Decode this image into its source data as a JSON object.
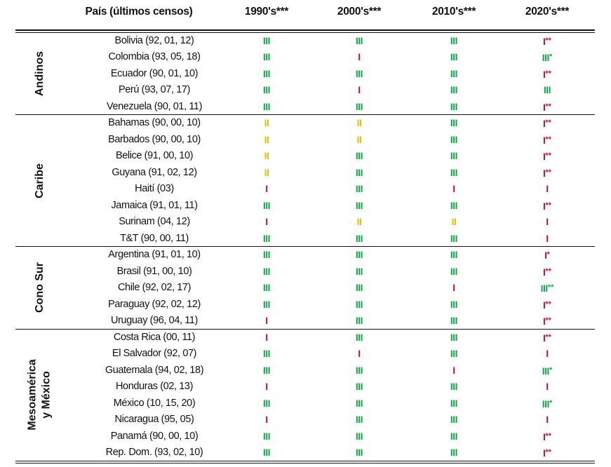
{
  "header": {
    "country": "País (últimos censos)",
    "decades": [
      "1990's***",
      "2000's***",
      "2010's***",
      "2020's***"
    ]
  },
  "colors": {
    "III": "#12a84a",
    "II": "#f5b800",
    "I": "#c8102e"
  },
  "groups": [
    {
      "name": "Andinos",
      "rows": [
        {
          "country": "Bolivia (92, 01, 12)",
          "marks": [
            [
              "III",
              ""
            ],
            [
              "III",
              ""
            ],
            [
              "III",
              ""
            ],
            [
              "I",
              "**"
            ]
          ]
        },
        {
          "country": "Colombia (93, 05, 18)",
          "marks": [
            [
              "III",
              ""
            ],
            [
              "I",
              ""
            ],
            [
              "III",
              ""
            ],
            [
              "III",
              "*"
            ]
          ]
        },
        {
          "country": "Ecuador (90, 01, 10)",
          "marks": [
            [
              "III",
              ""
            ],
            [
              "III",
              ""
            ],
            [
              "III",
              ""
            ],
            [
              "I",
              "**"
            ]
          ]
        },
        {
          "country": "Perú (93, 07, 17)",
          "marks": [
            [
              "III",
              ""
            ],
            [
              "I",
              ""
            ],
            [
              "III",
              ""
            ],
            [
              "III",
              ""
            ]
          ]
        },
        {
          "country": "Venezuela (90, 01, 11)",
          "marks": [
            [
              "III",
              ""
            ],
            [
              "III",
              ""
            ],
            [
              "III",
              ""
            ],
            [
              "I",
              "**"
            ]
          ]
        }
      ]
    },
    {
      "name": "Caribe",
      "rows": [
        {
          "country": "Bahamas (90, 00, 10)",
          "marks": [
            [
              "II",
              ""
            ],
            [
              "II",
              ""
            ],
            [
              "III",
              ""
            ],
            [
              "I",
              "**"
            ]
          ]
        },
        {
          "country": "Barbados (90, 00, 10)",
          "marks": [
            [
              "II",
              ""
            ],
            [
              "II",
              ""
            ],
            [
              "III",
              ""
            ],
            [
              "I",
              "**"
            ]
          ]
        },
        {
          "country": "Belice (91, 00, 10)",
          "marks": [
            [
              "II",
              ""
            ],
            [
              "III",
              ""
            ],
            [
              "III",
              ""
            ],
            [
              "I",
              "**"
            ]
          ]
        },
        {
          "country": "Guyana (91, 02, 12)",
          "marks": [
            [
              "II",
              ""
            ],
            [
              "III",
              ""
            ],
            [
              "III",
              ""
            ],
            [
              "I",
              "**"
            ]
          ]
        },
        {
          "country": "Haití (03)",
          "marks": [
            [
              "I",
              ""
            ],
            [
              "III",
              ""
            ],
            [
              "I",
              ""
            ],
            [
              "I",
              ""
            ]
          ]
        },
        {
          "country": "Jamaica (91, 01, 11)",
          "marks": [
            [
              "III",
              ""
            ],
            [
              "III",
              ""
            ],
            [
              "III",
              ""
            ],
            [
              "I",
              "**"
            ]
          ]
        },
        {
          "country": "Surinam (04, 12)",
          "marks": [
            [
              "I",
              ""
            ],
            [
              "II",
              ""
            ],
            [
              "II",
              ""
            ],
            [
              "I",
              ""
            ]
          ]
        },
        {
          "country": "T&T (90, 00, 11)",
          "marks": [
            [
              "III",
              ""
            ],
            [
              "III",
              ""
            ],
            [
              "III",
              ""
            ],
            [
              "I",
              ""
            ]
          ]
        }
      ]
    },
    {
      "name": "Cono Sur",
      "rows": [
        {
          "country": "Argentina (91, 01, 10)",
          "marks": [
            [
              "III",
              ""
            ],
            [
              "III",
              ""
            ],
            [
              "III",
              ""
            ],
            [
              "I",
              "*"
            ]
          ]
        },
        {
          "country": "Brasil (91, 00, 10)",
          "marks": [
            [
              "III",
              ""
            ],
            [
              "III",
              ""
            ],
            [
              "III",
              ""
            ],
            [
              "I",
              "**"
            ]
          ]
        },
        {
          "country": "Chile (92, 02, 17)",
          "marks": [
            [
              "III",
              ""
            ],
            [
              "III",
              ""
            ],
            [
              "I",
              ""
            ],
            [
              "III",
              "**"
            ]
          ]
        },
        {
          "country": "Paraguay (92, 02, 12)",
          "marks": [
            [
              "III",
              ""
            ],
            [
              "III",
              ""
            ],
            [
              "III",
              ""
            ],
            [
              "I",
              "**"
            ]
          ]
        },
        {
          "country": "Uruguay (96, 04, 11)",
          "marks": [
            [
              "I",
              ""
            ],
            [
              "III",
              ""
            ],
            [
              "III",
              ""
            ],
            [
              "I",
              "**"
            ]
          ]
        }
      ]
    },
    {
      "name": "Mesoamérica y México",
      "rows": [
        {
          "country": "Costa Rica (00, 11)",
          "marks": [
            [
              "I",
              ""
            ],
            [
              "III",
              ""
            ],
            [
              "III",
              ""
            ],
            [
              "I",
              "**"
            ]
          ]
        },
        {
          "country": "El Salvador (92, 07)",
          "marks": [
            [
              "III",
              ""
            ],
            [
              "I",
              ""
            ],
            [
              "III",
              ""
            ],
            [
              "I",
              ""
            ]
          ]
        },
        {
          "country": "Guatemala (94, 02, 18)",
          "marks": [
            [
              "III",
              ""
            ],
            [
              "III",
              ""
            ],
            [
              "I",
              ""
            ],
            [
              "III",
              "*"
            ]
          ]
        },
        {
          "country": "Honduras (02, 13)",
          "marks": [
            [
              "I",
              ""
            ],
            [
              "III",
              ""
            ],
            [
              "III",
              ""
            ],
            [
              "I",
              ""
            ]
          ]
        },
        {
          "country": "México (10, 15, 20)",
          "marks": [
            [
              "III",
              ""
            ],
            [
              "III",
              ""
            ],
            [
              "III",
              ""
            ],
            [
              "III",
              "*"
            ]
          ]
        },
        {
          "country": "Nicaragua (95, 05)",
          "marks": [
            [
              "I",
              ""
            ],
            [
              "III",
              ""
            ],
            [
              "III",
              ""
            ],
            [
              "I",
              ""
            ]
          ]
        },
        {
          "country": "Panamá (90, 00, 10)",
          "marks": [
            [
              "III",
              ""
            ],
            [
              "III",
              ""
            ],
            [
              "III",
              ""
            ],
            [
              "I",
              "**"
            ]
          ]
        },
        {
          "country": "Rep. Dom. (93, 02, 10)",
          "marks": [
            [
              "III",
              ""
            ],
            [
              "III",
              ""
            ],
            [
              "III",
              ""
            ],
            [
              "I",
              "**"
            ]
          ]
        }
      ]
    }
  ]
}
